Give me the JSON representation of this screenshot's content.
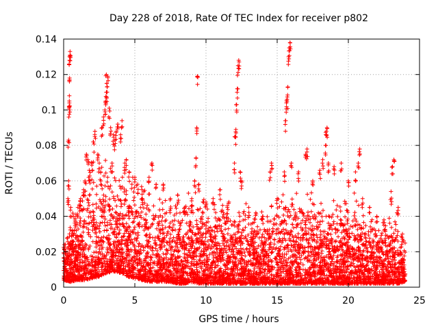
{
  "chart_data": {
    "type": "scatter",
    "title": "Day 228 of 2018, Rate Of TEC Index for receiver p802",
    "xlabel": "GPS time / hours",
    "ylabel": "ROTI / TECUs",
    "xlim": [
      0,
      25
    ],
    "ylim": [
      0,
      0.14
    ],
    "xticks": [
      0,
      5,
      10,
      15,
      20,
      25
    ],
    "yticks": [
      0,
      0.02,
      0.04,
      0.06,
      0.08,
      0.1,
      0.12,
      0.14
    ],
    "xtick_labels": [
      "0",
      "5",
      "10",
      "15",
      "20",
      "25"
    ],
    "ytick_labels": [
      "0",
      "0.02",
      "0.04",
      "0.06",
      "0.08",
      "0.1",
      "0.12",
      "0.14"
    ],
    "grid": true,
    "marker": "+",
    "color": "#ff0000",
    "series": [
      {
        "name": "ROTI",
        "points": [
          [
            0.05,
            0.024
          ],
          [
            0.15,
            0.02
          ],
          [
            0.25,
            0.018
          ],
          [
            0.3,
            0.05
          ],
          [
            0.35,
            0.06
          ],
          [
            0.35,
            0.083
          ],
          [
            0.38,
            0.101
          ],
          [
            0.4,
            0.104
          ],
          [
            0.4,
            0.108
          ],
          [
            0.42,
            0.118
          ],
          [
            0.42,
            0.128
          ],
          [
            0.45,
            0.131
          ],
          [
            0.45,
            0.133
          ],
          [
            0.5,
            0.045
          ],
          [
            0.6,
            0.032
          ],
          [
            0.8,
            0.038
          ],
          [
            1.0,
            0.045
          ],
          [
            1.2,
            0.05
          ],
          [
            1.4,
            0.055
          ],
          [
            1.5,
            0.06
          ],
          [
            1.6,
            0.075
          ],
          [
            1.7,
            0.072
          ],
          [
            1.8,
            0.066
          ],
          [
            2.0,
            0.07
          ],
          [
            2.1,
            0.082
          ],
          [
            2.2,
            0.088
          ],
          [
            2.4,
            0.075
          ],
          [
            2.5,
            0.07
          ],
          [
            2.6,
            0.065
          ],
          [
            2.7,
            0.09
          ],
          [
            2.8,
            0.096
          ],
          [
            2.9,
            0.1
          ],
          [
            2.95,
            0.105
          ],
          [
            3.0,
            0.11
          ],
          [
            3.0,
            0.12
          ],
          [
            3.05,
            0.113
          ],
          [
            3.1,
            0.119
          ],
          [
            3.2,
            0.101
          ],
          [
            3.3,
            0.09
          ],
          [
            3.4,
            0.07
          ],
          [
            3.5,
            0.086
          ],
          [
            3.6,
            0.083
          ],
          [
            3.7,
            0.088
          ],
          [
            3.8,
            0.092
          ],
          [
            4.0,
            0.086
          ],
          [
            4.1,
            0.094
          ],
          [
            4.3,
            0.07
          ],
          [
            4.4,
            0.072
          ],
          [
            4.6,
            0.065
          ],
          [
            5.0,
            0.062
          ],
          [
            5.2,
            0.058
          ],
          [
            5.5,
            0.055
          ],
          [
            6.0,
            0.062
          ],
          [
            6.2,
            0.07
          ],
          [
            6.5,
            0.058
          ],
          [
            7.0,
            0.058
          ],
          [
            7.5,
            0.05
          ],
          [
            8.0,
            0.052
          ],
          [
            8.5,
            0.045
          ],
          [
            9.0,
            0.05
          ],
          [
            9.2,
            0.06
          ],
          [
            9.3,
            0.073
          ],
          [
            9.35,
            0.09
          ],
          [
            9.4,
            0.119
          ],
          [
            9.5,
            0.058
          ],
          [
            10.0,
            0.048
          ],
          [
            10.5,
            0.05
          ],
          [
            11.0,
            0.055
          ],
          [
            11.5,
            0.045
          ],
          [
            12.0,
            0.07
          ],
          [
            12.05,
            0.085
          ],
          [
            12.1,
            0.089
          ],
          [
            12.15,
            0.103
          ],
          [
            12.2,
            0.112
          ],
          [
            12.25,
            0.125
          ],
          [
            12.3,
            0.128
          ],
          [
            12.4,
            0.065
          ],
          [
            12.5,
            0.06
          ],
          [
            13.0,
            0.045
          ],
          [
            13.5,
            0.042
          ],
          [
            14.0,
            0.04
          ],
          [
            14.5,
            0.065
          ],
          [
            14.6,
            0.07
          ],
          [
            15.0,
            0.05
          ],
          [
            15.5,
            0.065
          ],
          [
            15.6,
            0.094
          ],
          [
            15.65,
            0.104
          ],
          [
            15.7,
            0.106
          ],
          [
            15.75,
            0.113
          ],
          [
            15.8,
            0.13
          ],
          [
            15.85,
            0.135
          ],
          [
            15.9,
            0.138
          ],
          [
            16.0,
            0.07
          ],
          [
            16.5,
            0.065
          ],
          [
            17.0,
            0.075
          ],
          [
            17.1,
            0.078
          ],
          [
            17.5,
            0.06
          ],
          [
            18.0,
            0.066
          ],
          [
            18.2,
            0.072
          ],
          [
            18.4,
            0.08
          ],
          [
            18.45,
            0.088
          ],
          [
            18.5,
            0.09
          ],
          [
            18.6,
            0.07
          ],
          [
            19.0,
            0.068
          ],
          [
            19.5,
            0.07
          ],
          [
            20.0,
            0.06
          ],
          [
            20.5,
            0.065
          ],
          [
            20.7,
            0.07
          ],
          [
            20.8,
            0.078
          ],
          [
            21.0,
            0.05
          ],
          [
            21.5,
            0.045
          ],
          [
            22.0,
            0.04
          ],
          [
            22.5,
            0.038
          ],
          [
            23.0,
            0.054
          ],
          [
            23.1,
            0.068
          ],
          [
            23.2,
            0.072
          ],
          [
            23.5,
            0.045
          ],
          [
            23.8,
            0.03
          ]
        ]
      }
    ],
    "envelope": {
      "x": [
        0,
        0.5,
        1,
        1.5,
        2,
        2.5,
        3,
        3.5,
        4,
        4.5,
        5,
        5.5,
        6,
        6.5,
        7,
        7.5,
        8,
        8.5,
        9,
        9.5,
        10,
        10.5,
        11,
        11.5,
        12,
        12.5,
        13,
        13.5,
        14,
        14.5,
        15,
        15.5,
        16,
        16.5,
        17,
        17.5,
        18,
        18.5,
        19,
        19.5,
        20,
        20.5,
        21,
        21.5,
        22,
        22.5,
        23,
        23.5,
        24
      ],
      "lower": [
        0.004,
        0.003,
        0.004,
        0.004,
        0.005,
        0.006,
        0.008,
        0.009,
        0.008,
        0.006,
        0.005,
        0.004,
        0.003,
        0.003,
        0.003,
        0.003,
        0.002,
        0.002,
        0.003,
        0.002,
        0.002,
        0.002,
        0.002,
        0.002,
        0.002,
        0.002,
        0.002,
        0.002,
        0.002,
        0.002,
        0.002,
        0.002,
        0.002,
        0.002,
        0.002,
        0.002,
        0.002,
        0.002,
        0.002,
        0.002,
        0.002,
        0.002,
        0.002,
        0.002,
        0.002,
        0.002,
        0.002,
        0.002,
        0.003
      ],
      "upper": [
        0.025,
        0.035,
        0.045,
        0.055,
        0.065,
        0.06,
        0.07,
        0.065,
        0.06,
        0.06,
        0.055,
        0.05,
        0.05,
        0.045,
        0.045,
        0.04,
        0.042,
        0.045,
        0.05,
        0.048,
        0.045,
        0.045,
        0.05,
        0.045,
        0.04,
        0.045,
        0.04,
        0.038,
        0.04,
        0.05,
        0.045,
        0.045,
        0.05,
        0.045,
        0.05,
        0.05,
        0.045,
        0.05,
        0.045,
        0.045,
        0.045,
        0.045,
        0.04,
        0.04,
        0.035,
        0.035,
        0.04,
        0.035,
        0.025
      ]
    }
  }
}
